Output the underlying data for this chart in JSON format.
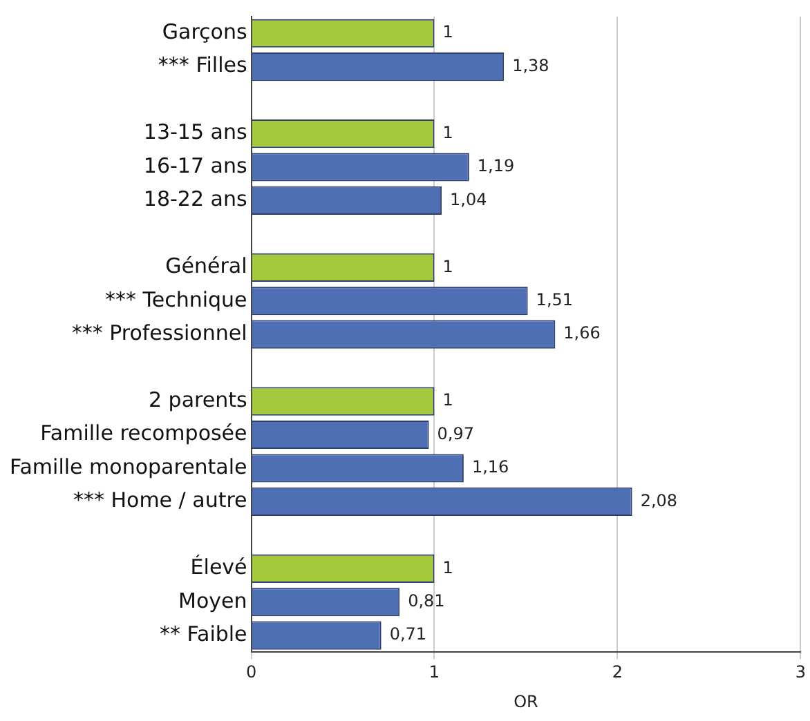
{
  "chart_data": {
    "type": "bar",
    "orientation": "horizontal",
    "xlabel": "OR",
    "categories": [
      "Garçons",
      "*** Filles",
      null,
      "13-15 ans",
      "16-17 ans",
      "18-22 ans",
      null,
      "Général",
      "*** Technique",
      "*** Professionnel",
      null,
      "2 parents",
      "Famille recomposée",
      "Famille monoparentale",
      "*** Home / autre",
      null,
      "Élevé",
      "Moyen",
      "** Faible"
    ],
    "values": [
      1,
      1.38,
      null,
      1,
      1.19,
      1.04,
      null,
      1,
      1.51,
      1.66,
      null,
      1,
      0.97,
      1.16,
      2.08,
      null,
      1,
      0.81,
      0.71
    ],
    "value_labels": [
      "1",
      "1,38",
      null,
      "1",
      "1,19",
      "1,04",
      null,
      "1",
      "1,51",
      "1,66",
      null,
      "1",
      "0,97",
      "1,16",
      "2,08",
      null,
      "1",
      "0,81",
      "0,71"
    ],
    "colors": [
      "#a4c93c",
      "#4f6fb5",
      null,
      "#a4c93c",
      "#4f6fb5",
      "#4f6fb5",
      null,
      "#a4c93c",
      "#4f6fb5",
      "#4f6fb5",
      null,
      "#a4c93c",
      "#4f6fb5",
      "#4f6fb5",
      "#4f6fb5",
      null,
      "#a4c93c",
      "#4f6fb5",
      "#4f6fb5"
    ],
    "xlim": [
      0,
      3
    ],
    "xticks": [
      0,
      1,
      2,
      3
    ],
    "grid": "x",
    "legend": false
  }
}
